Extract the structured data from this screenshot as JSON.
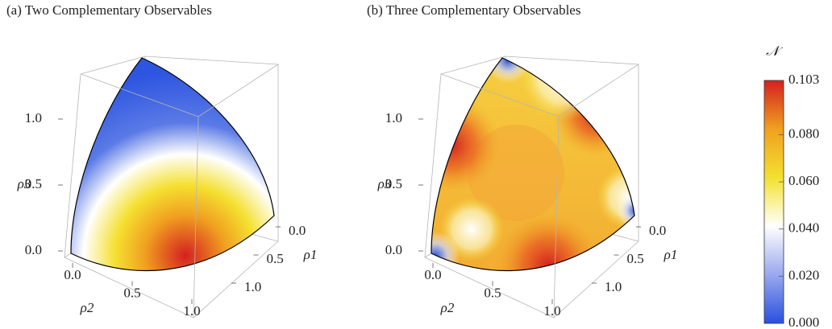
{
  "chart_data": [
    {
      "type": "surface3d",
      "title": "(a) Two Complementary Observables",
      "xlabel": "ρ1",
      "ylabel": "ρ2",
      "zlabel": "ρ3",
      "xlim": [
        0,
        1
      ],
      "ylim": [
        0,
        1
      ],
      "zlim": [
        0,
        1
      ],
      "xticks": [
        {
          "value": 0,
          "label": "0.0"
        },
        {
          "value": 0.5,
          "label": "0.5"
        },
        {
          "value": 1,
          "label": "1.0"
        }
      ],
      "yticks": [
        {
          "value": 0,
          "label": "0.0"
        },
        {
          "value": 0.5,
          "label": "0.5"
        },
        {
          "value": 1,
          "label": "1.0"
        }
      ],
      "zticks": [
        {
          "value": 0,
          "label": "0.0"
        },
        {
          "value": 0.5,
          "label": "0.5"
        },
        {
          "value": 1,
          "label": "1.0"
        }
      ]
    },
    {
      "type": "surface3d",
      "title": "(b) Three Complementary Observables",
      "xlabel": "ρ1",
      "ylabel": "ρ2",
      "zlabel": "ρ3",
      "xlim": [
        0,
        1
      ],
      "ylim": [
        0,
        1
      ],
      "zlim": [
        0,
        1
      ],
      "xticks": [
        {
          "value": 0,
          "label": "0.0"
        },
        {
          "value": 0.5,
          "label": "0.5"
        },
        {
          "value": 1,
          "label": "1.0"
        }
      ],
      "yticks": [
        {
          "value": 0,
          "label": "0.0"
        },
        {
          "value": 0.5,
          "label": "0.5"
        },
        {
          "value": 1,
          "label": "1.0"
        }
      ],
      "zticks": [
        {
          "value": 0,
          "label": "0.0"
        },
        {
          "value": 0.5,
          "label": "0.5"
        },
        {
          "value": 1,
          "label": "1.0"
        }
      ]
    }
  ],
  "colorbar": {
    "label": "𝒩",
    "lim": [
      0,
      0.103
    ],
    "ticks": [
      {
        "value": 0,
        "label": "0.000"
      },
      {
        "value": 0.02,
        "label": "0.020"
      },
      {
        "value": 0.04,
        "label": "0.040"
      },
      {
        "value": 0.06,
        "label": "0.060"
      },
      {
        "value": 0.08,
        "label": "0.080"
      },
      {
        "value": 0.103,
        "label": "0.103"
      }
    ],
    "colors": [
      "#2850e0",
      "#9aa8ee",
      "#ffffff",
      "#f4e030",
      "#f0a020",
      "#d42020"
    ]
  }
}
